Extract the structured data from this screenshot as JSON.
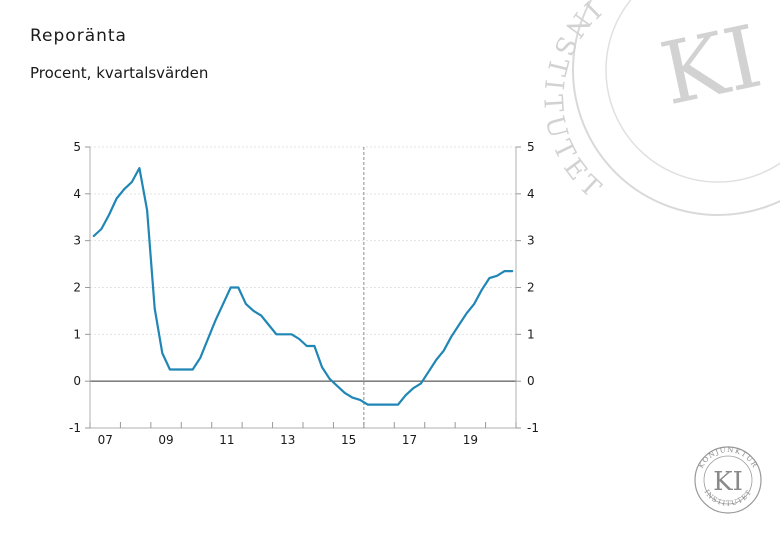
{
  "title": "Reporänta",
  "subtitle": "Procent, kvartalsvärden",
  "logo": {
    "watermark_letters": "KI",
    "watermark_ring": "INSTITUTET",
    "badge_letters": "KI",
    "badge_top": "KONJUNKTUR",
    "badge_bottom": "INSTITUTET"
  },
  "chart_data": {
    "type": "line",
    "title": "Reporänta",
    "subtitle": "Procent, kvartalsvärden",
    "xlabel": "",
    "ylabel": "",
    "ylim": [
      -1,
      5
    ],
    "yticks": [
      -1,
      0,
      1,
      2,
      3,
      4,
      5
    ],
    "yticks_right": [
      -1,
      0,
      1,
      2,
      3,
      4,
      5
    ],
    "xticks": [
      "07",
      "09",
      "11",
      "13",
      "15",
      "17",
      "19"
    ],
    "x_range": [
      "2007Q1",
      "2020Q4"
    ],
    "forecast_start": "2016Q1",
    "grid": "horizontal",
    "color": "#1f86b5",
    "series": [
      {
        "name": "",
        "x": [
          "2007Q1",
          "2007Q2",
          "2007Q3",
          "2007Q4",
          "2008Q1",
          "2008Q2",
          "2008Q3",
          "2008Q4",
          "2009Q1",
          "2009Q2",
          "2009Q3",
          "2009Q4",
          "2010Q1",
          "2010Q2",
          "2010Q3",
          "2010Q4",
          "2011Q1",
          "2011Q2",
          "2011Q3",
          "2011Q4",
          "2012Q1",
          "2012Q2",
          "2012Q3",
          "2012Q4",
          "2013Q1",
          "2013Q2",
          "2013Q3",
          "2013Q4",
          "2014Q1",
          "2014Q2",
          "2014Q3",
          "2014Q4",
          "2015Q1",
          "2015Q2",
          "2015Q3",
          "2015Q4",
          "2016Q1",
          "2016Q2",
          "2016Q3",
          "2016Q4",
          "2017Q1",
          "2017Q2",
          "2017Q3",
          "2017Q4",
          "2018Q1",
          "2018Q2",
          "2018Q3",
          "2018Q4",
          "2019Q1",
          "2019Q2",
          "2019Q3",
          "2019Q4",
          "2020Q1",
          "2020Q2",
          "2020Q3",
          "2020Q4"
        ],
        "values": [
          3.1,
          3.25,
          3.55,
          3.9,
          4.1,
          4.25,
          4.55,
          3.65,
          1.55,
          0.6,
          0.25,
          0.25,
          0.25,
          0.25,
          0.5,
          0.9,
          1.3,
          1.65,
          2.0,
          2.0,
          1.65,
          1.5,
          1.4,
          1.2,
          1.0,
          1.0,
          1.0,
          0.9,
          0.75,
          0.75,
          0.3,
          0.05,
          -0.1,
          -0.25,
          -0.35,
          -0.4,
          -0.5,
          -0.5,
          -0.5,
          -0.5,
          -0.5,
          -0.3,
          -0.15,
          -0.05,
          0.2,
          0.45,
          0.65,
          0.95,
          1.2,
          1.45,
          1.65,
          1.95,
          2.2,
          2.25,
          2.35,
          2.35
        ]
      }
    ]
  }
}
